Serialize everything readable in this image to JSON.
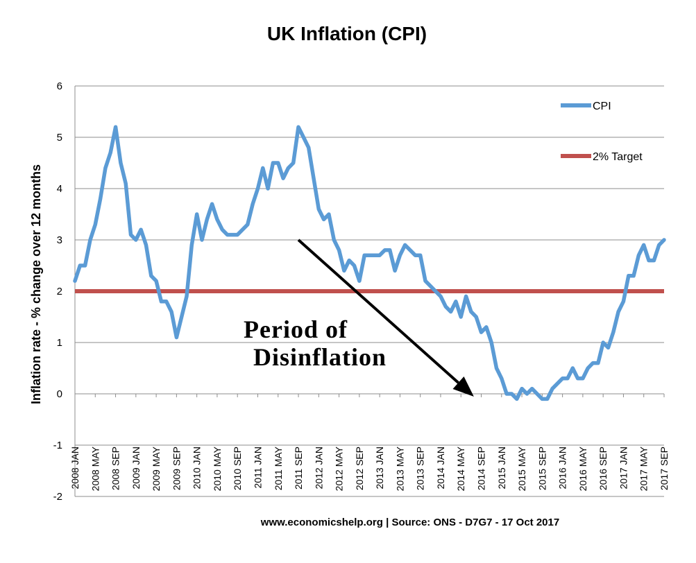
{
  "chart_data": {
    "type": "line",
    "title": "UK Inflation (CPI)",
    "ylabel": "Inflation rate  - % change over 12 months",
    "xlabel": "",
    "ylim": [
      -2,
      6
    ],
    "yticks": [
      "6",
      "5",
      "4",
      "3",
      "2",
      "1",
      "0",
      "-1",
      "-2"
    ],
    "grid": true,
    "legend_position": "top-right",
    "x_tick_labels": [
      "2008 JAN",
      "2008 MAY",
      "2008 SEP",
      "2009 JAN",
      "2009 MAY",
      "2009 SEP",
      "2010 JAN",
      "2010 MAY",
      "2010 SEP",
      "2011 JAN",
      "2011 MAY",
      "2011 SEP",
      "2012 JAN",
      "2012 MAY",
      "2012 SEP",
      "2013 JAN",
      "2013 MAY",
      "2013 SEP",
      "2014 JAN",
      "2014 MAY",
      "2014 SEP",
      "2015 JAN",
      "2015 MAY",
      "2015 SEP",
      "2016 JAN",
      "2016 MAY",
      "2016 SEP",
      "2017 JAN",
      "2017 MAY",
      "2017 SEP"
    ],
    "series": [
      {
        "name": "CPI",
        "color": "#5B9BD5",
        "start": "2008 JAN",
        "frequency": "monthly",
        "values": [
          2.2,
          2.5,
          2.5,
          3.0,
          3.3,
          3.8,
          4.4,
          4.7,
          5.2,
          4.5,
          4.1,
          3.1,
          3.0,
          3.2,
          2.9,
          2.3,
          2.2,
          1.8,
          1.8,
          1.6,
          1.1,
          1.5,
          1.9,
          2.9,
          3.5,
          3.0,
          3.4,
          3.7,
          3.4,
          3.2,
          3.1,
          3.1,
          3.1,
          3.2,
          3.3,
          3.7,
          4.0,
          4.4,
          4.0,
          4.5,
          4.5,
          4.2,
          4.4,
          4.5,
          5.2,
          5.0,
          4.8,
          4.2,
          3.6,
          3.4,
          3.5,
          3.0,
          2.8,
          2.4,
          2.6,
          2.5,
          2.2,
          2.7,
          2.7,
          2.7,
          2.7,
          2.8,
          2.8,
          2.4,
          2.7,
          2.9,
          2.8,
          2.7,
          2.7,
          2.2,
          2.1,
          2.0,
          1.9,
          1.7,
          1.6,
          1.8,
          1.5,
          1.9,
          1.6,
          1.5,
          1.2,
          1.3,
          1.0,
          0.5,
          0.3,
          0.0,
          0.0,
          -0.1,
          0.1,
          0.0,
          0.1,
          0.0,
          -0.1,
          -0.1,
          0.1,
          0.2,
          0.3,
          0.3,
          0.5,
          0.3,
          0.3,
          0.5,
          0.6,
          0.6,
          1.0,
          0.9,
          1.2,
          1.6,
          1.8,
          2.3,
          2.3,
          2.7,
          2.9,
          2.6,
          2.6,
          2.9,
          3.0
        ]
      },
      {
        "name": "2% Target",
        "color": "#C0504D",
        "constant": 2
      }
    ],
    "annotations": [
      {
        "lines": [
          "Period of",
          "Disinflation"
        ],
        "arrow_from": {
          "date": "2011 SEP",
          "value": 3.0
        },
        "arrow_to": {
          "date": "2014 JUL",
          "value": 0.0
        }
      }
    ]
  },
  "source": "www.economicshelp.org | Source: ONS - D7G7 - 17 Oct 2017"
}
